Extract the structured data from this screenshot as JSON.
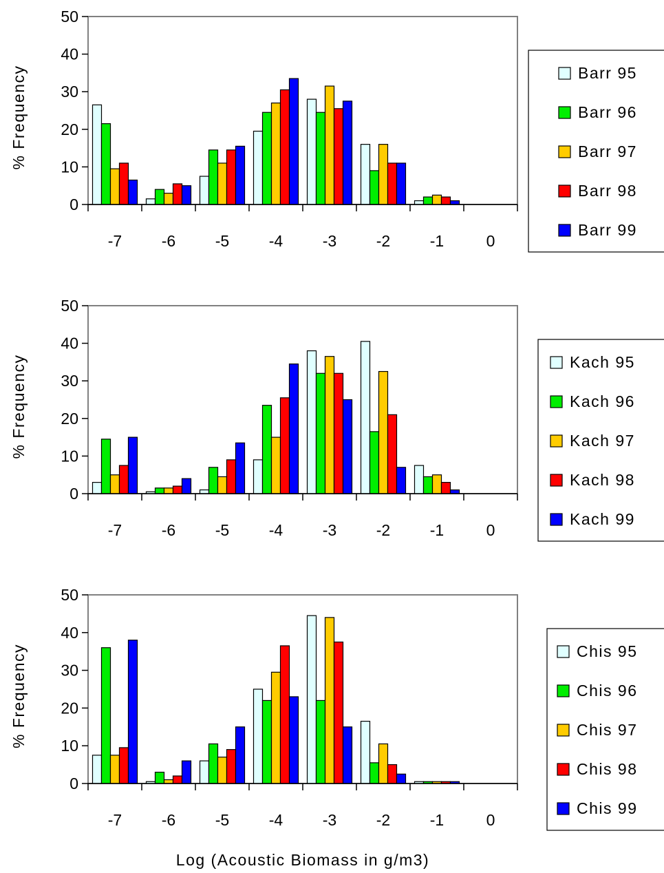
{
  "chart_data": [
    {
      "type": "bar",
      "title": "",
      "categories": [
        "-7",
        "-6",
        "-5",
        "-4",
        "-3",
        "-2",
        "-1",
        "0"
      ],
      "xlabel": "",
      "ylabel": "% Frequency",
      "ylim": [
        0,
        50
      ],
      "yticks": [
        "0",
        "10",
        "20",
        "30",
        "40",
        "50"
      ],
      "legend_position": "right",
      "series": [
        {
          "name": "Barr 95",
          "color": "#e0ffff",
          "values": [
            26.5,
            1.5,
            7.5,
            19.5,
            28,
            16,
            1,
            0
          ]
        },
        {
          "name": "Barr 96",
          "color": "#00ee00",
          "values": [
            21.5,
            4,
            14.5,
            24.5,
            24.5,
            9,
            2,
            0
          ]
        },
        {
          "name": "Barr 97",
          "color": "#ffcc00",
          "values": [
            9.5,
            3,
            11,
            27,
            31.5,
            16,
            2.5,
            0
          ]
        },
        {
          "name": "Barr 98",
          "color": "#ff0000",
          "values": [
            11,
            5.5,
            14.5,
            30.5,
            25.5,
            11,
            2,
            0
          ]
        },
        {
          "name": "Barr 99",
          "color": "#0000ff",
          "values": [
            6.5,
            5,
            15.5,
            33.5,
            27.5,
            11,
            1,
            0
          ]
        }
      ]
    },
    {
      "type": "bar",
      "title": "",
      "categories": [
        "-7",
        "-6",
        "-5",
        "-4",
        "-3",
        "-2",
        "-1",
        "0"
      ],
      "xlabel": "",
      "ylabel": "% Frequency",
      "ylim": [
        0,
        50
      ],
      "yticks": [
        "0",
        "10",
        "20",
        "30",
        "40",
        "50"
      ],
      "legend_position": "right",
      "series": [
        {
          "name": "Kach 95",
          "color": "#e0ffff",
          "values": [
            3,
            0.5,
            1,
            9,
            38,
            40.5,
            7.5,
            0
          ]
        },
        {
          "name": "Kach 96",
          "color": "#00ee00",
          "values": [
            14.5,
            1.5,
            7,
            23.5,
            32,
            16.5,
            4.5,
            0
          ]
        },
        {
          "name": "Kach 97",
          "color": "#ffcc00",
          "values": [
            5,
            1.5,
            4.5,
            15,
            36.5,
            32.5,
            5,
            0
          ]
        },
        {
          "name": "Kach 98",
          "color": "#ff0000",
          "values": [
            7.5,
            2,
            9,
            25.5,
            32,
            21,
            3,
            0
          ]
        },
        {
          "name": "Kach 99",
          "color": "#0000ff",
          "values": [
            15,
            4,
            13.5,
            34.5,
            25,
            7,
            1,
            0
          ]
        }
      ]
    },
    {
      "type": "bar",
      "title": "",
      "categories": [
        "-7",
        "-6",
        "-5",
        "-4",
        "-3",
        "-2",
        "-1",
        "0"
      ],
      "xlabel": "Log (Acoustic Biomass in g/m3)",
      "ylabel": "% Frequency",
      "ylim": [
        0,
        50
      ],
      "yticks": [
        "0",
        "10",
        "20",
        "30",
        "40",
        "50"
      ],
      "legend_position": "right",
      "series": [
        {
          "name": "Chis 95",
          "color": "#e0ffff",
          "values": [
            7.5,
            0.5,
            6,
            25,
            44.5,
            16.5,
            0.5,
            0
          ]
        },
        {
          "name": "Chis 96",
          "color": "#00ee00",
          "values": [
            36,
            3,
            10.5,
            22,
            22,
            5.5,
            0.5,
            0
          ]
        },
        {
          "name": "Chis 97",
          "color": "#ffcc00",
          "values": [
            7.5,
            1,
            7,
            29.5,
            44,
            10.5,
            0.5,
            0
          ]
        },
        {
          "name": "Chis 98",
          "color": "#ff0000",
          "values": [
            9.5,
            2,
            9,
            36.5,
            37.5,
            5,
            0.5,
            0
          ]
        },
        {
          "name": "Chis 99",
          "color": "#0000ff",
          "values": [
            38,
            6,
            15,
            23,
            15,
            2.5,
            0.5,
            0
          ]
        }
      ]
    }
  ]
}
